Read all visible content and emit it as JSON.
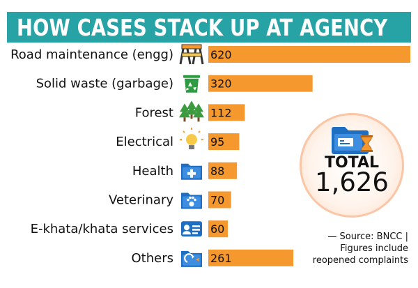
{
  "title": "HOW CASES STACK UP AT AGENCY",
  "colors": {
    "title_bar": "#27a3a6",
    "bar": "#f5992f",
    "icon_blue": "#1e6fc1"
  },
  "chart_data": {
    "type": "bar",
    "orientation": "horizontal",
    "title": "HOW CASES STACK UP AT AGENCY",
    "categories": [
      "Road maintenance (engg)",
      "Solid waste (garbage)",
      "Forest",
      "Electrical",
      "Health",
      "Veterinary",
      "E-khata/khata services",
      "Others"
    ],
    "values": [
      620,
      320,
      112,
      95,
      88,
      70,
      60,
      261
    ],
    "icons": [
      "road-work-icon",
      "recycle-bin-icon",
      "trees-icon",
      "light-bulb-icon",
      "health-folder-icon",
      "veterinary-folder-icon",
      "id-card-icon",
      "others-folder-icon"
    ]
  },
  "total": {
    "label": "TOTAL",
    "value": "1,626",
    "icon": "folder-hourglass-icon"
  },
  "source_note": {
    "line1": "— Source: BNCC |",
    "line2": "Figures include",
    "line3": "reopened complaints"
  }
}
